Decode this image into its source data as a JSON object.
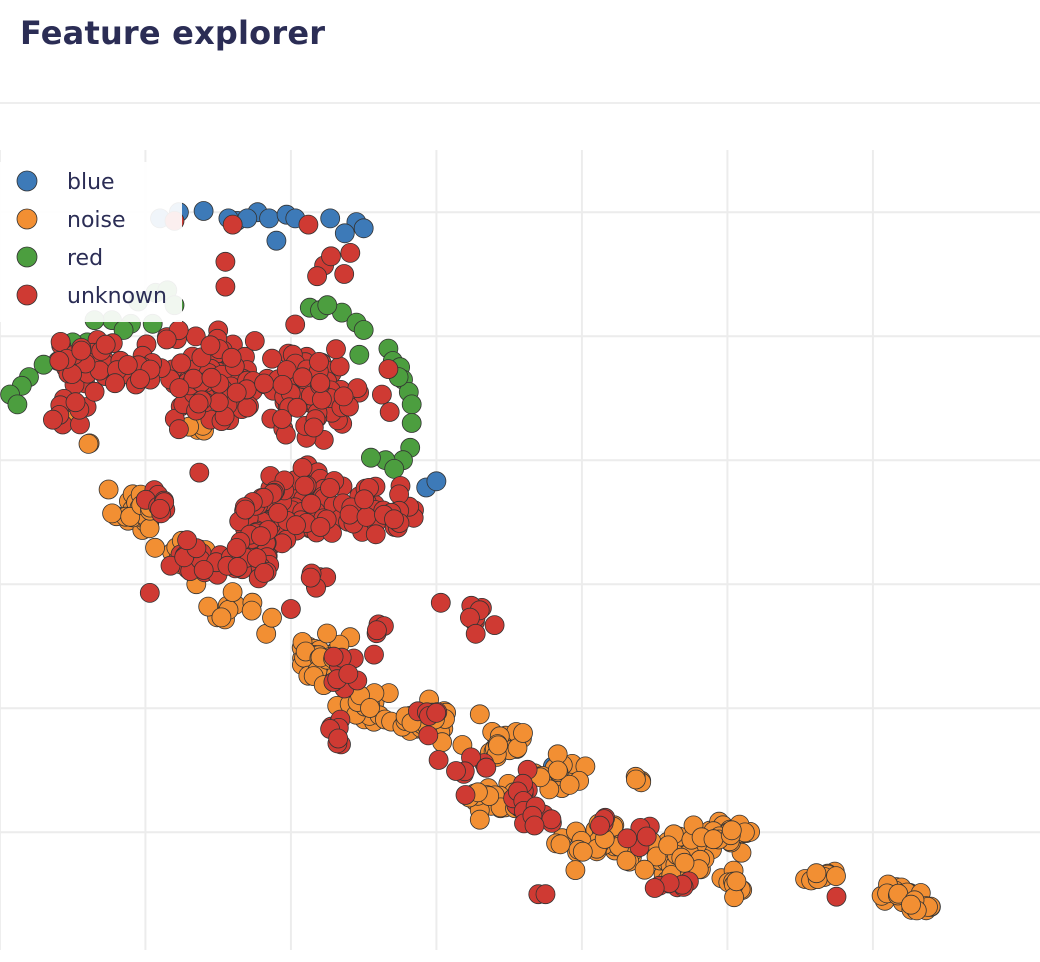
{
  "page": {
    "title": "Feature explorer"
  },
  "colors": {
    "blue": "#3d7ab8",
    "noise": "#f28f33",
    "red": "#4c9e3f",
    "unknown": "#cf3a33",
    "grid": "#ececec",
    "marker_outline": "#333333",
    "title_text": "#2b2d55"
  },
  "chart_data": {
    "type": "scatter",
    "title": "",
    "xlabel": "",
    "ylabel": "",
    "xlim": [
      0,
      7.2
    ],
    "ylim": [
      0,
      6.45
    ],
    "grid": true,
    "x_ticks": [
      0.35,
      1.35,
      2.35,
      3.35,
      4.35,
      5.35,
      6.35
    ],
    "y_ticks": [
      0.95,
      1.95,
      2.95,
      3.95,
      4.95,
      5.95
    ],
    "tick_labels_visible": false,
    "legend": {
      "position": "top-left",
      "entries": [
        "blue",
        "noise",
        "red",
        "unknown"
      ]
    },
    "series": [
      {
        "name": "blue",
        "color": "#3d7ab8",
        "points": [
          [
            1.45,
            5.9
          ],
          [
            1.58,
            5.95
          ],
          [
            1.75,
            5.96
          ],
          [
            1.98,
            5.88
          ],
          [
            2.12,
            5.95
          ],
          [
            2.2,
            5.9
          ],
          [
            2.32,
            5.93
          ],
          [
            2.38,
            5.9
          ],
          [
            2.25,
            5.72
          ],
          [
            2.62,
            5.9
          ],
          [
            2.8,
            5.87
          ],
          [
            2.85,
            5.82
          ],
          [
            2.72,
            5.78
          ],
          [
            0.3,
            4.45
          ],
          [
            3.28,
            3.73
          ],
          [
            3.35,
            3.78
          ],
          [
            4.15,
            1.48
          ],
          [
            1.92,
            5.9
          ],
          [
            2.05,
            5.9
          ]
        ]
      },
      {
        "name": "noise",
        "color": "#f28f33",
        "clusters": [
          [
            1.3,
            3.55,
            0.14,
            0.14,
            38
          ],
          [
            1.6,
            3.2,
            0.14,
            0.11,
            14
          ],
          [
            1.95,
            2.75,
            0.12,
            0.09,
            10
          ],
          [
            2.55,
            2.35,
            0.17,
            0.17,
            44
          ],
          [
            2.85,
            1.95,
            0.14,
            0.13,
            20
          ],
          [
            3.3,
            1.85,
            0.18,
            0.11,
            34
          ],
          [
            3.8,
            1.68,
            0.16,
            0.11,
            22
          ],
          [
            3.72,
            1.23,
            0.16,
            0.14,
            24
          ],
          [
            4.2,
            1.4,
            0.2,
            0.11,
            20
          ],
          [
            4.5,
            0.85,
            0.22,
            0.15,
            30
          ],
          [
            5.05,
            0.75,
            0.26,
            0.18,
            48
          ],
          [
            5.35,
            0.95,
            0.16,
            0.12,
            26
          ],
          [
            5.42,
            0.5,
            0.07,
            0.08,
            7
          ],
          [
            6.0,
            0.6,
            0.12,
            0.04,
            10
          ],
          [
            6.5,
            0.45,
            0.16,
            0.05,
            22
          ],
          [
            6.7,
            0.35,
            0.1,
            0.03,
            12
          ],
          [
            4.72,
            1.4,
            0.05,
            0.05,
            4
          ],
          [
            0.85,
            4.36,
            0.05,
            0.04,
            2
          ],
          [
            1.74,
            4.2,
            0.07,
            0.04,
            3
          ],
          [
            0.95,
            4.1,
            0.03,
            0.03,
            2
          ]
        ],
        "points": [
          [
            1.65,
            4.22
          ],
          [
            1.7,
            2.95
          ],
          [
            2.18,
            2.55
          ],
          [
            2.22,
            2.68
          ],
          [
            1.6,
            3.3
          ]
        ]
      },
      {
        "name": "red",
        "color": "#4c9e3f",
        "points": [
          [
            1.42,
            5.3
          ],
          [
            1.5,
            5.32
          ],
          [
            1.55,
            5.2
          ],
          [
            1.4,
            5.05
          ],
          [
            1.25,
            5.05
          ],
          [
            1.12,
            5.08
          ],
          [
            1.0,
            5.08
          ],
          [
            0.95,
            4.9
          ],
          [
            0.85,
            4.9
          ],
          [
            0.75,
            4.75
          ],
          [
            0.65,
            4.72
          ],
          [
            0.55,
            4.62
          ],
          [
            0.5,
            4.55
          ],
          [
            0.42,
            4.48
          ],
          [
            0.47,
            4.4
          ],
          [
            2.48,
            5.18
          ],
          [
            2.55,
            5.16
          ],
          [
            2.7,
            5.14
          ],
          [
            2.8,
            5.06
          ],
          [
            2.85,
            5.0
          ],
          [
            2.82,
            4.8
          ],
          [
            3.02,
            4.85
          ],
          [
            3.05,
            4.75
          ],
          [
            3.1,
            4.7
          ],
          [
            3.12,
            4.6
          ],
          [
            3.16,
            4.5
          ],
          [
            3.18,
            4.4
          ],
          [
            3.18,
            4.25
          ],
          [
            3.17,
            4.05
          ],
          [
            3.12,
            3.95
          ],
          [
            3.0,
            3.95
          ],
          [
            2.9,
            3.97
          ],
          [
            3.06,
            3.88
          ],
          [
            1.3,
            5.23
          ],
          [
            1.2,
            5.0
          ],
          [
            2.6,
            5.2
          ],
          [
            3.09,
            4.62
          ]
        ]
      },
      {
        "name": "unknown",
        "color": "#cf3a33",
        "clusters": [
          [
            1.85,
            4.6,
            0.32,
            0.3,
            110
          ],
          [
            2.5,
            4.5,
            0.3,
            0.3,
            90
          ],
          [
            1.0,
            4.75,
            0.3,
            0.16,
            38
          ],
          [
            0.85,
            4.35,
            0.18,
            0.1,
            12
          ],
          [
            2.45,
            3.55,
            0.28,
            0.25,
            88
          ],
          [
            3.0,
            3.55,
            0.2,
            0.18,
            30
          ],
          [
            2.1,
            3.4,
            0.12,
            0.2,
            26
          ],
          [
            1.45,
            3.65,
            0.12,
            0.13,
            10
          ],
          [
            1.65,
            3.15,
            0.15,
            0.1,
            12
          ],
          [
            2.0,
            3.1,
            0.18,
            0.1,
            18
          ],
          [
            2.5,
            3.0,
            0.1,
            0.08,
            6
          ],
          [
            2.95,
            2.55,
            0.05,
            0.1,
            5
          ],
          [
            3.65,
            2.75,
            0.1,
            0.1,
            5
          ],
          [
            2.75,
            2.25,
            0.12,
            0.15,
            10
          ],
          [
            2.65,
            1.72,
            0.1,
            0.15,
            8
          ],
          [
            3.3,
            1.9,
            0.1,
            0.12,
            6
          ],
          [
            3.55,
            1.45,
            0.15,
            0.12,
            8
          ],
          [
            3.95,
            1.25,
            0.12,
            0.12,
            12
          ],
          [
            4.05,
            1.05,
            0.12,
            0.12,
            8
          ],
          [
            4.5,
            1.05,
            0.04,
            0.04,
            4
          ],
          [
            4.75,
            0.92,
            0.1,
            0.08,
            6
          ],
          [
            5.0,
            0.55,
            0.1,
            0.08,
            6
          ],
          [
            2.7,
            5.55,
            0.15,
            0.12,
            5
          ]
        ],
        "points": [
          [
            1.55,
            5.88
          ],
          [
            1.95,
            5.85
          ],
          [
            2.47,
            5.85
          ],
          [
            1.9,
            5.55
          ],
          [
            1.9,
            5.35
          ],
          [
            1.58,
            4.2
          ],
          [
            1.72,
            3.85
          ],
          [
            3.38,
            2.8
          ],
          [
            3.58,
            2.68
          ],
          [
            3.62,
            2.55
          ],
          [
            6.1,
            0.43
          ],
          [
            3.75,
            2.62
          ],
          [
            4.05,
            0.45
          ],
          [
            4.1,
            0.45
          ],
          [
            4.85,
            0.5
          ],
          [
            3.55,
            1.25
          ],
          [
            2.35,
            2.75
          ],
          [
            1.38,
            2.88
          ]
        ]
      }
    ]
  }
}
